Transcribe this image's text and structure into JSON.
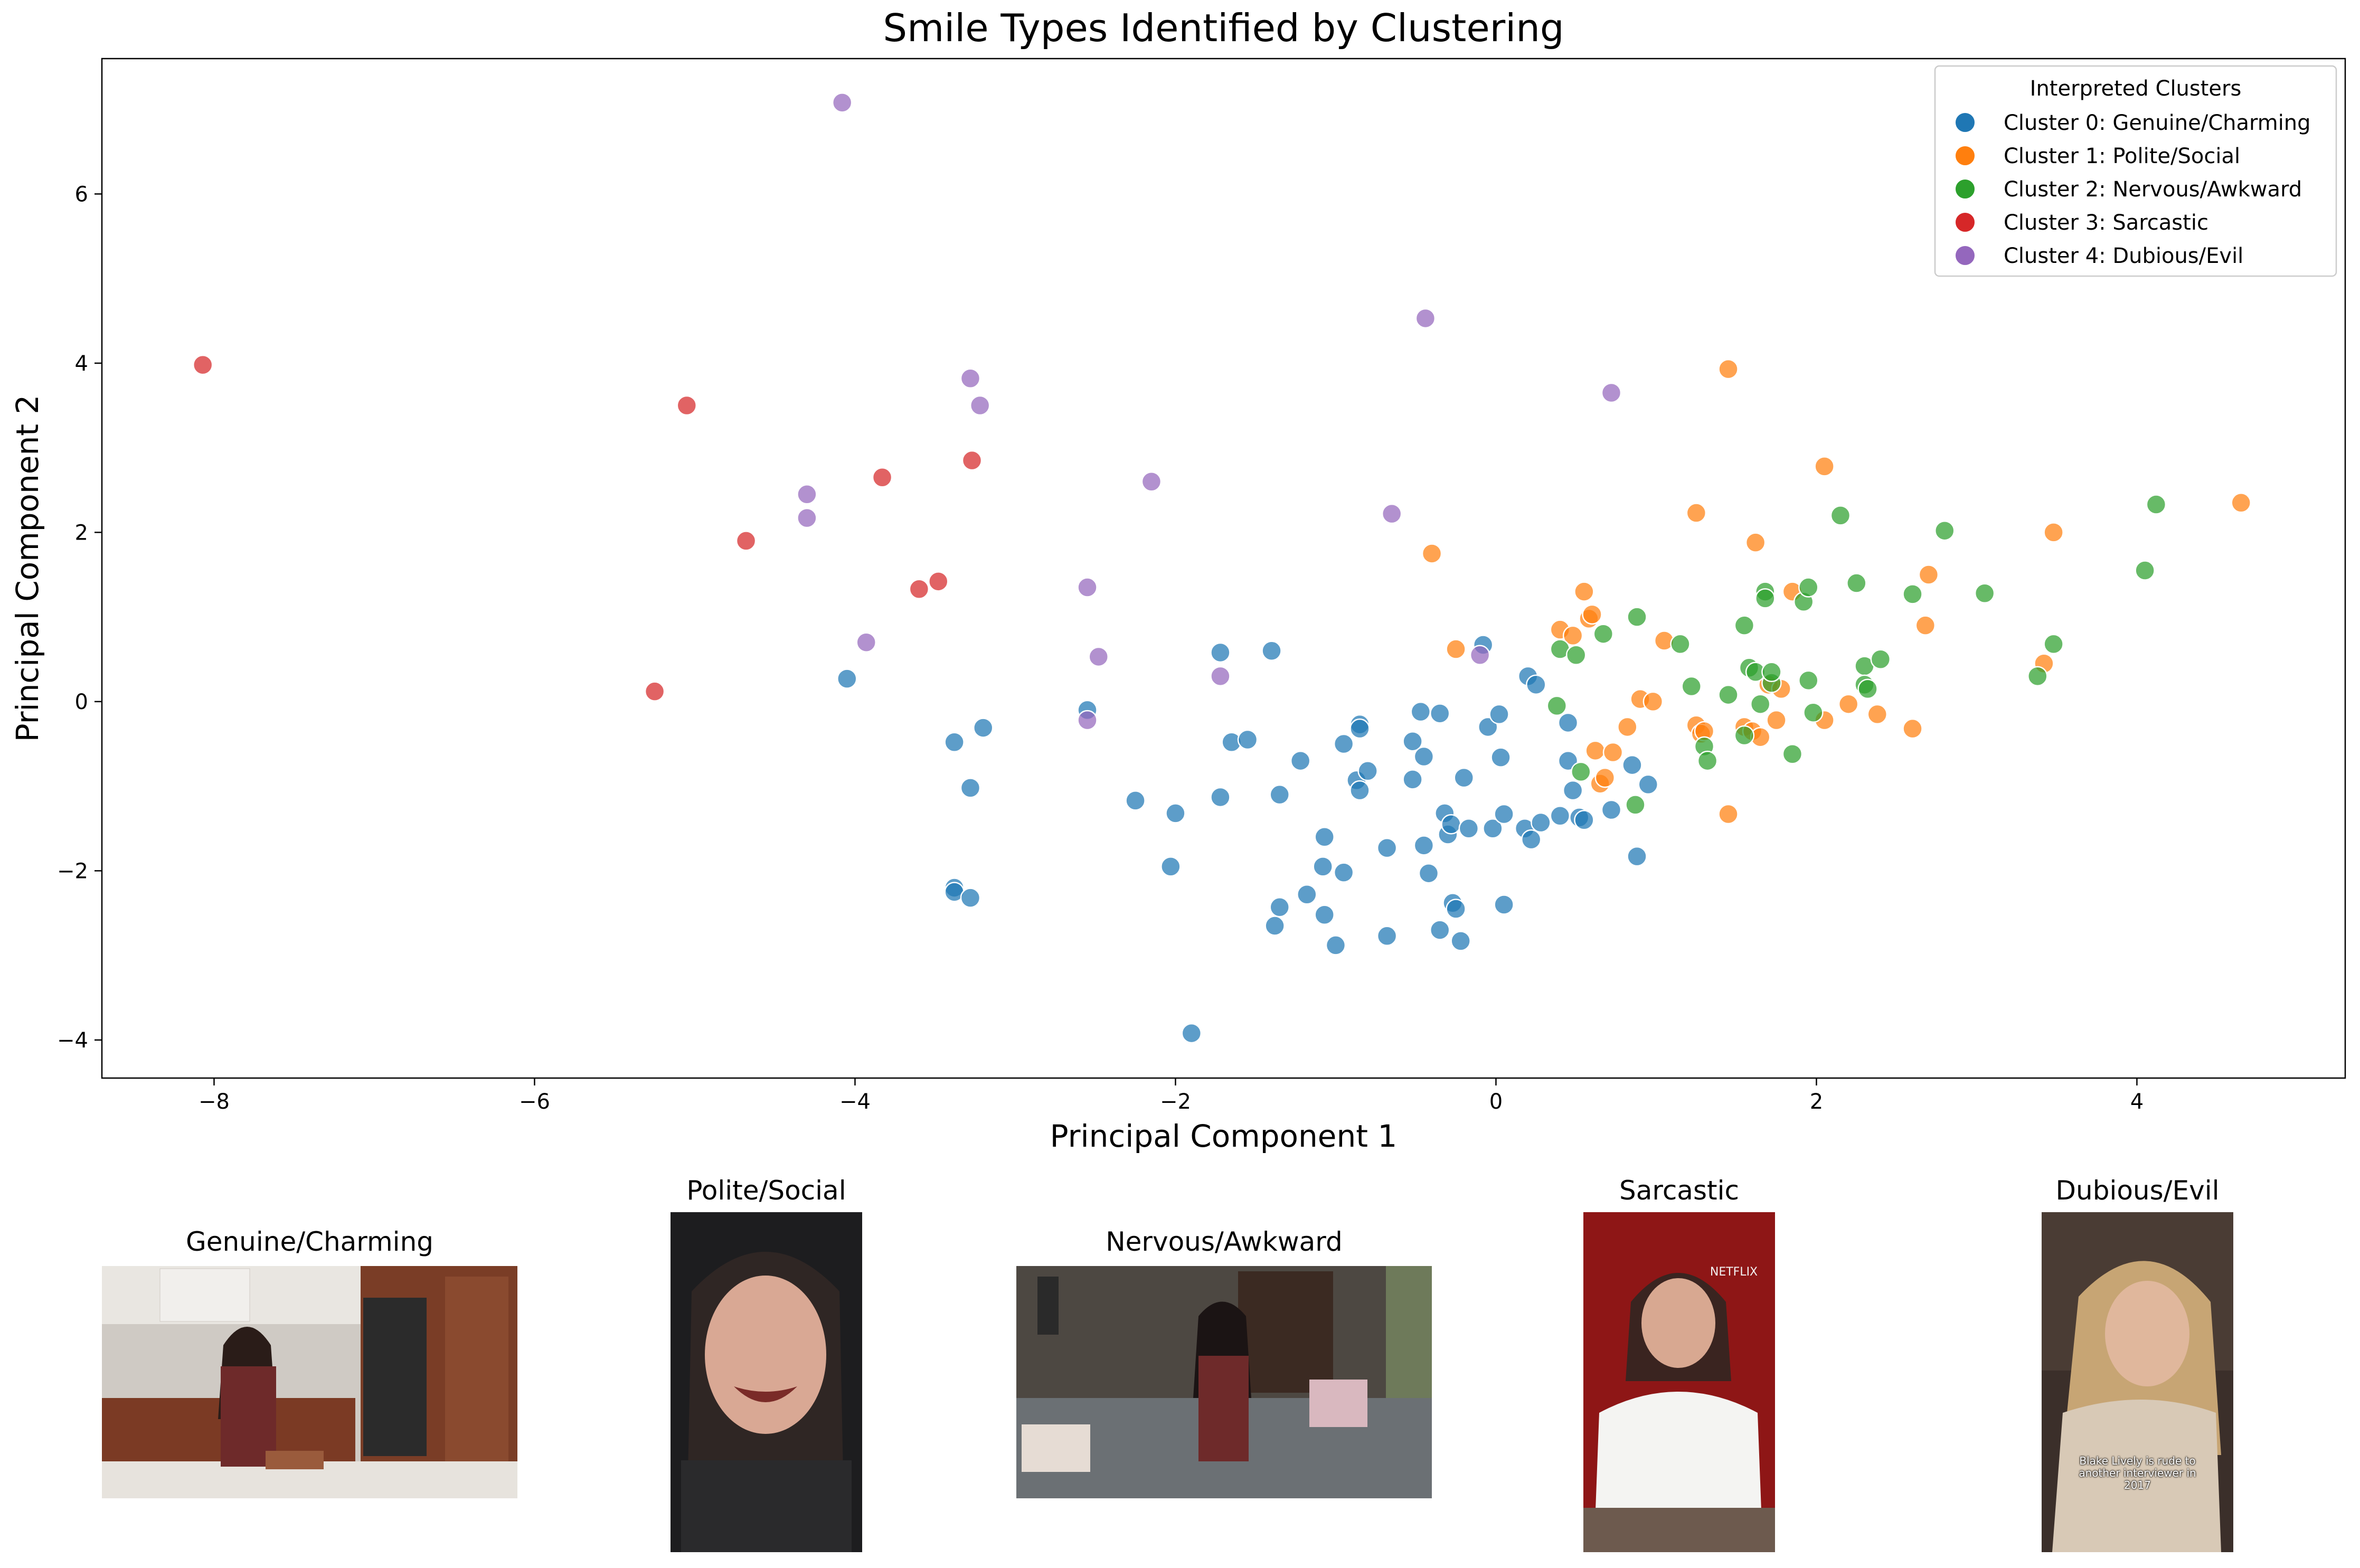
{
  "chart_data": {
    "type": "scatter",
    "title": "Smile Types Identified by Clustering",
    "xlabel": "Principal Component 1",
    "ylabel": "Principal Component 2",
    "xlim": [
      -8.7,
      5.3
    ],
    "ylim": [
      -4.45,
      7.6
    ],
    "xticks": [
      -8,
      -6,
      -4,
      -2,
      0,
      2,
      4
    ],
    "yticks": [
      -4,
      -2,
      0,
      2,
      4,
      6
    ],
    "grid": false,
    "legend": {
      "title": "Interpreted Clusters",
      "placement": "top-right"
    },
    "series": [
      {
        "name": "Cluster 0: Genuine/Charming",
        "color": "#1f77b4",
        "points": [
          [
            -4.05,
            0.27
          ],
          [
            -3.38,
            -0.48
          ],
          [
            -3.2,
            -0.31
          ],
          [
            -3.28,
            -1.02
          ],
          [
            -3.38,
            -2.2
          ],
          [
            -3.38,
            -2.25
          ],
          [
            -3.28,
            -2.32
          ],
          [
            -2.55,
            -0.1
          ],
          [
            -2.25,
            -1.17
          ],
          [
            -2.0,
            -1.32
          ],
          [
            -2.03,
            -1.95
          ],
          [
            -1.9,
            -3.92
          ],
          [
            -1.72,
            0.58
          ],
          [
            -1.72,
            -1.13
          ],
          [
            -1.65,
            -0.48
          ],
          [
            -1.55,
            -0.45
          ],
          [
            -1.4,
            0.6
          ],
          [
            -1.35,
            -1.1
          ],
          [
            -1.38,
            -2.65
          ],
          [
            -1.35,
            -2.43
          ],
          [
            -1.22,
            -0.7
          ],
          [
            -1.18,
            -2.28
          ],
          [
            -1.08,
            -1.95
          ],
          [
            -1.07,
            -1.6
          ],
          [
            -1.07,
            -2.52
          ],
          [
            -1.0,
            -2.88
          ],
          [
            -0.95,
            -0.5
          ],
          [
            -0.95,
            -2.02
          ],
          [
            -0.87,
            -0.93
          ],
          [
            -0.85,
            -0.27
          ],
          [
            -0.85,
            -0.32
          ],
          [
            -0.85,
            -1.05
          ],
          [
            -0.8,
            -0.82
          ],
          [
            -0.68,
            -1.73
          ],
          [
            -0.68,
            -2.77
          ],
          [
            -0.52,
            -0.47
          ],
          [
            -0.52,
            -0.92
          ],
          [
            -0.47,
            -0.12
          ],
          [
            -0.45,
            -0.65
          ],
          [
            -0.45,
            -1.7
          ],
          [
            -0.42,
            -2.03
          ],
          [
            -0.35,
            -0.14
          ],
          [
            -0.35,
            -2.7
          ],
          [
            -0.32,
            -1.32
          ],
          [
            -0.3,
            -1.57
          ],
          [
            -0.28,
            -1.45
          ],
          [
            -0.27,
            -2.38
          ],
          [
            -0.25,
            -2.45
          ],
          [
            -0.22,
            -2.83
          ],
          [
            -0.2,
            -0.9
          ],
          [
            -0.17,
            -1.5
          ],
          [
            -0.08,
            0.67
          ],
          [
            -0.05,
            -0.3
          ],
          [
            -0.02,
            -1.5
          ],
          [
            0.02,
            -0.15
          ],
          [
            0.03,
            -0.66
          ],
          [
            0.05,
            -1.33
          ],
          [
            0.05,
            -2.4
          ],
          [
            0.18,
            -1.5
          ],
          [
            0.2,
            0.3
          ],
          [
            0.22,
            -1.63
          ],
          [
            0.25,
            0.2
          ],
          [
            0.28,
            -1.43
          ],
          [
            0.4,
            -1.35
          ],
          [
            0.45,
            -0.25
          ],
          [
            0.45,
            -0.7
          ],
          [
            0.48,
            -1.05
          ],
          [
            0.52,
            -1.37
          ],
          [
            0.55,
            -1.4
          ],
          [
            0.72,
            -1.28
          ],
          [
            0.85,
            -0.75
          ],
          [
            0.88,
            -1.83
          ],
          [
            0.95,
            -0.98
          ]
        ]
      },
      {
        "name": "Cluster 1: Polite/Social",
        "color": "#ff7f0e",
        "points": [
          [
            -0.4,
            1.75
          ],
          [
            -0.25,
            0.62
          ],
          [
            0.4,
            0.85
          ],
          [
            0.48,
            0.78
          ],
          [
            0.55,
            1.3
          ],
          [
            0.58,
            0.98
          ],
          [
            0.6,
            1.03
          ],
          [
            0.62,
            -0.58
          ],
          [
            0.65,
            -0.97
          ],
          [
            0.68,
            -0.9
          ],
          [
            0.73,
            -0.6
          ],
          [
            0.82,
            -0.3
          ],
          [
            0.9,
            0.03
          ],
          [
            0.98,
            0.0
          ],
          [
            1.05,
            0.72
          ],
          [
            1.25,
            2.23
          ],
          [
            1.25,
            -0.28
          ],
          [
            1.28,
            -0.38
          ],
          [
            1.3,
            -0.35
          ],
          [
            1.45,
            3.93
          ],
          [
            1.45,
            -1.33
          ],
          [
            1.55,
            -0.3
          ],
          [
            1.6,
            -0.35
          ],
          [
            1.62,
            1.88
          ],
          [
            1.65,
            -0.42
          ],
          [
            1.7,
            0.2
          ],
          [
            1.75,
            -0.22
          ],
          [
            1.78,
            0.15
          ],
          [
            1.85,
            1.3
          ],
          [
            2.05,
            2.78
          ],
          [
            2.05,
            -0.22
          ],
          [
            2.2,
            -0.03
          ],
          [
            2.38,
            -0.15
          ],
          [
            2.6,
            -0.32
          ],
          [
            2.68,
            0.9
          ],
          [
            2.7,
            1.5
          ],
          [
            3.42,
            0.45
          ],
          [
            3.48,
            2.0
          ],
          [
            4.65,
            2.35
          ]
        ]
      },
      {
        "name": "Cluster 2: Nervous/Awkward",
        "color": "#2ca02c",
        "points": [
          [
            0.38,
            -0.05
          ],
          [
            0.4,
            0.62
          ],
          [
            0.5,
            0.55
          ],
          [
            0.53,
            -0.83
          ],
          [
            0.67,
            0.8
          ],
          [
            0.87,
            -1.22
          ],
          [
            0.88,
            1.0
          ],
          [
            1.15,
            0.68
          ],
          [
            1.22,
            0.18
          ],
          [
            1.3,
            -0.53
          ],
          [
            1.32,
            -0.7
          ],
          [
            1.45,
            0.08
          ],
          [
            1.55,
            0.9
          ],
          [
            1.55,
            -0.4
          ],
          [
            1.58,
            0.4
          ],
          [
            1.62,
            0.35
          ],
          [
            1.65,
            -0.03
          ],
          [
            1.68,
            1.3
          ],
          [
            1.68,
            1.22
          ],
          [
            1.72,
            0.22
          ],
          [
            1.72,
            0.35
          ],
          [
            1.85,
            -0.62
          ],
          [
            1.92,
            1.18
          ],
          [
            1.95,
            1.35
          ],
          [
            1.95,
            0.25
          ],
          [
            1.98,
            -0.13
          ],
          [
            2.15,
            2.2
          ],
          [
            2.25,
            1.4
          ],
          [
            2.3,
            0.42
          ],
          [
            2.3,
            0.2
          ],
          [
            2.32,
            0.15
          ],
          [
            2.4,
            0.5
          ],
          [
            2.6,
            1.27
          ],
          [
            2.8,
            2.02
          ],
          [
            3.05,
            1.28
          ],
          [
            3.38,
            0.3
          ],
          [
            3.48,
            0.68
          ],
          [
            4.05,
            1.55
          ],
          [
            4.12,
            2.33
          ]
        ]
      },
      {
        "name": "Cluster 3: Sarcastic",
        "color": "#d62728",
        "points": [
          [
            -8.07,
            3.98
          ],
          [
            -5.05,
            3.5
          ],
          [
            -4.68,
            1.9
          ],
          [
            -3.83,
            2.65
          ],
          [
            -3.6,
            1.33
          ],
          [
            -3.48,
            1.42
          ],
          [
            -3.27,
            2.85
          ],
          [
            -5.25,
            0.12
          ]
        ]
      },
      {
        "name": "Cluster 4: Dubious/Evil",
        "color": "#9467bd",
        "points": [
          [
            -4.08,
            7.08
          ],
          [
            -4.3,
            2.45
          ],
          [
            -4.3,
            2.17
          ],
          [
            -3.93,
            0.7
          ],
          [
            -3.28,
            3.82
          ],
          [
            -3.22,
            3.5
          ],
          [
            -2.55,
            1.35
          ],
          [
            -2.55,
            -0.22
          ],
          [
            -2.48,
            0.53
          ],
          [
            -2.15,
            2.6
          ],
          [
            -1.72,
            0.3
          ],
          [
            -0.65,
            2.22
          ],
          [
            -0.44,
            4.53
          ],
          [
            -0.1,
            0.55
          ],
          [
            0.72,
            3.65
          ]
        ]
      }
    ]
  },
  "thumbnails": [
    {
      "label": "Genuine/Charming",
      "scene": "kitchen"
    },
    {
      "label": "Polite/Social",
      "scene": "closeup-dark"
    },
    {
      "label": "Nervous/Awkward",
      "scene": "living-room"
    },
    {
      "label": "Sarcastic",
      "scene": "red-backdrop",
      "overlay_text": "NETFLIX"
    },
    {
      "label": "Dubious/Evil",
      "scene": "interview",
      "overlay_text": "Blake Lively is rude to another interviewer in 2017"
    }
  ]
}
